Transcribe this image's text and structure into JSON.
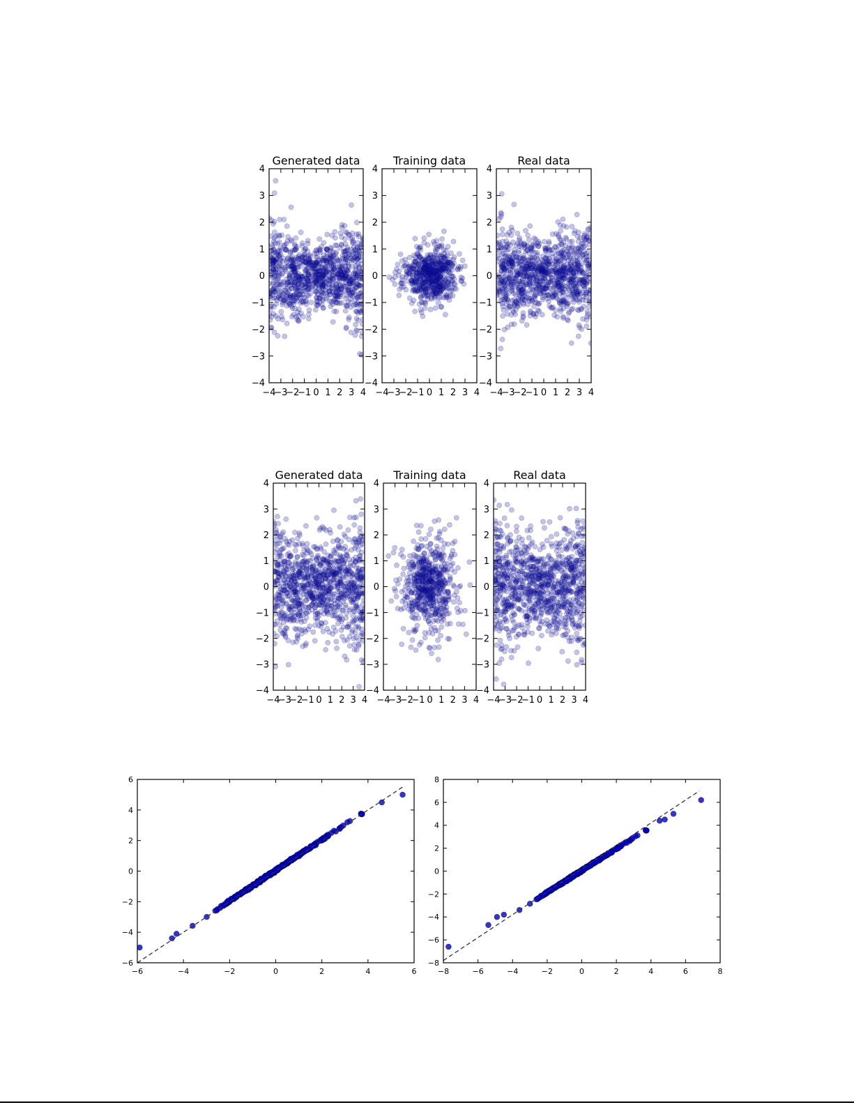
{
  "figures": [
    {
      "panels": [
        {
          "title": "Generated data"
        },
        {
          "title": "Training data"
        },
        {
          "title": "Real data"
        }
      ]
    },
    {
      "panels": [
        {
          "title": "Generated data"
        },
        {
          "title": "Training data"
        },
        {
          "title": "Real data"
        }
      ]
    }
  ],
  "colors": {
    "point": "#1010b4",
    "qq_point": "#0000c8",
    "reference_line": "#333333",
    "axes": "#000000",
    "background": "#ffffff"
  },
  "chart_data": [
    {
      "type": "scatter",
      "name": "row1-generated",
      "title": "Generated data",
      "xlim": [
        -4,
        4
      ],
      "ylim": [
        -4,
        4
      ],
      "xticks": [
        -4,
        -3,
        -2,
        -1,
        0,
        1,
        2,
        3,
        4
      ],
      "yticks": [
        -4,
        -3,
        -2,
        -1,
        0,
        1,
        2,
        3,
        4
      ],
      "sample": {
        "n": 1000,
        "x": [
          -4,
          4
        ],
        "y_std": 0.55,
        "y_std_slope": 0.13,
        "seed": 11
      },
      "marker_alpha": 0.25
    },
    {
      "type": "scatter",
      "name": "row1-training",
      "title": "Training data",
      "xlim": [
        -4,
        4
      ],
      "ylim": [
        -4,
        4
      ],
      "xticks": [
        -4,
        -3,
        -2,
        -1,
        0,
        1,
        2,
        3,
        4
      ],
      "yticks": [
        -4,
        -3,
        -2,
        -1,
        0,
        1,
        2,
        3,
        4
      ],
      "sample": {
        "n": 600,
        "x_std": 1.15,
        "y_std": 0.5,
        "y_std_slope": 0.02,
        "seed": 23
      },
      "marker_alpha": 0.25
    },
    {
      "type": "scatter",
      "name": "row1-real",
      "title": "Real data",
      "xlim": [
        -4,
        4
      ],
      "ylim": [
        -4,
        4
      ],
      "xticks": [
        -4,
        -3,
        -2,
        -1,
        0,
        1,
        2,
        3,
        4
      ],
      "yticks": [
        -4,
        -3,
        -2,
        -1,
        0,
        1,
        2,
        3,
        4
      ],
      "sample": {
        "n": 1000,
        "x": [
          -4,
          4
        ],
        "y_std": 0.55,
        "y_std_slope": 0.13,
        "seed": 37
      },
      "marker_alpha": 0.25
    },
    {
      "type": "scatter",
      "name": "row2-generated",
      "title": "Generated data",
      "xlim": [
        -4,
        4
      ],
      "ylim": [
        -4,
        4
      ],
      "xticks": [
        -4,
        -3,
        -2,
        -1,
        0,
        1,
        2,
        3,
        4
      ],
      "yticks": [
        -4,
        -3,
        -2,
        -1,
        0,
        1,
        2,
        3,
        4
      ],
      "sample": {
        "n": 1000,
        "x": [
          -4,
          4
        ],
        "y_std": 0.85,
        "y_std_slope": 0.1,
        "seed": 41
      },
      "marker_alpha": 0.25
    },
    {
      "type": "scatter",
      "name": "row2-training",
      "title": "Training data",
      "xlim": [
        -4,
        4
      ],
      "ylim": [
        -4,
        4
      ],
      "xticks": [
        -4,
        -3,
        -2,
        -1,
        0,
        1,
        2,
        3,
        4
      ],
      "yticks": [
        -4,
        -3,
        -2,
        -1,
        0,
        1,
        2,
        3,
        4
      ],
      "sample": {
        "n": 600,
        "x_std": 1.25,
        "y_std": 0.9,
        "y_std_slope": 0.05,
        "seed": 53
      },
      "marker_alpha": 0.25
    },
    {
      "type": "scatter",
      "name": "row2-real",
      "title": "Real data",
      "xlim": [
        -4,
        4
      ],
      "ylim": [
        -4,
        4
      ],
      "xticks": [
        -4,
        -3,
        -2,
        -1,
        0,
        1,
        2,
        3,
        4
      ],
      "yticks": [
        -4,
        -3,
        -2,
        -1,
        0,
        1,
        2,
        3,
        4
      ],
      "sample": {
        "n": 1000,
        "x": [
          -4,
          4
        ],
        "y_std": 0.85,
        "y_std_slope": 0.1,
        "seed": 67
      },
      "marker_alpha": 0.25
    },
    {
      "type": "scatter",
      "name": "qq-left",
      "title": "",
      "xlabel": "",
      "ylabel": "",
      "xlim": [
        -6,
        6
      ],
      "ylim": [
        -6,
        6
      ],
      "xticks": [
        -6,
        -4,
        -2,
        0,
        2,
        4,
        6
      ],
      "yticks": [
        -6,
        -4,
        -2,
        0,
        2,
        4,
        6
      ],
      "reference_line": {
        "from": [
          -6,
          -6
        ],
        "to": [
          5.5,
          5.5
        ],
        "style": "dashed"
      },
      "series": {
        "body": {
          "n": 400,
          "x_range": [
            -4.3,
            4.1
          ],
          "slope": 1.0,
          "offset": 0.05
        },
        "extra_points": [
          [
            -5.9,
            -5.0
          ],
          [
            -4.5,
            -4.4
          ],
          [
            -4.3,
            -4.1
          ],
          [
            4.6,
            4.5
          ],
          [
            5.5,
            5.0
          ]
        ]
      },
      "marker_alpha": 0.8
    },
    {
      "type": "scatter",
      "name": "qq-right",
      "title": "",
      "xlabel": "",
      "ylabel": "",
      "xlim": [
        -8,
        8
      ],
      "ylim": [
        -8,
        8
      ],
      "xticks": [
        -8,
        -6,
        -4,
        -2,
        0,
        2,
        4,
        6,
        8
      ],
      "yticks": [
        -8,
        -6,
        -4,
        -2,
        0,
        2,
        4,
        6,
        8
      ],
      "reference_line": {
        "from": [
          -8,
          -7.8
        ],
        "to": [
          6.8,
          7.0
        ],
        "style": "dashed"
      },
      "series": {
        "body": {
          "n": 400,
          "x_range": [
            -4.2,
            4.2
          ],
          "slope": 0.95,
          "offset": 0.05
        },
        "extra_points": [
          [
            -7.7,
            -6.6
          ],
          [
            -5.4,
            -4.7
          ],
          [
            -4.9,
            -4.0
          ],
          [
            -4.5,
            -3.8
          ],
          [
            4.5,
            4.4
          ],
          [
            4.8,
            4.5
          ],
          [
            5.3,
            5.0
          ],
          [
            6.9,
            6.2
          ]
        ]
      },
      "marker_alpha": 0.8
    }
  ]
}
